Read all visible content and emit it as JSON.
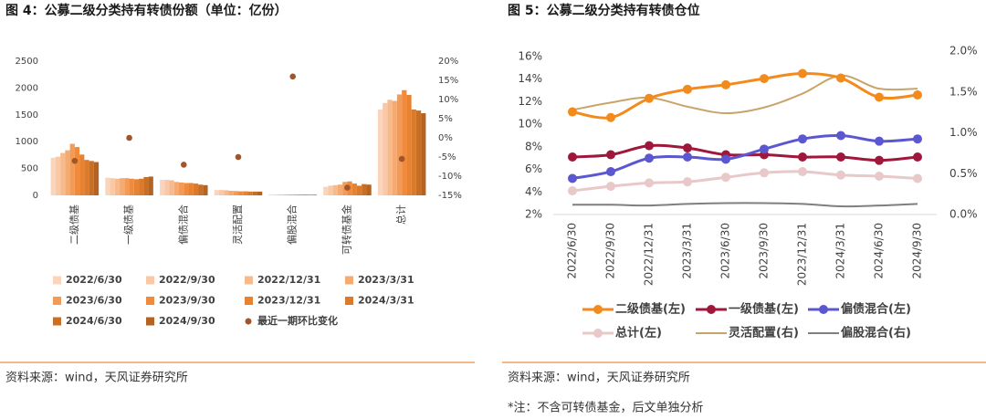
{
  "chart_data": [
    {
      "type": "bar",
      "title": "图 4：公募二级分类持有转债份额（单位：亿份）",
      "source": "资料来源：wind，天风证券研究所",
      "categories": [
        "二级债基",
        "一级债基",
        "偏债混合",
        "灵活配置",
        "偏股混合",
        "可转债基金",
        "总计"
      ],
      "ylim": [
        0,
        2500
      ],
      "yticks": [
        0,
        500,
        1000,
        1500,
        2000,
        2500
      ],
      "y2lim": [
        -15,
        20
      ],
      "y2ticks": [
        {
          "value": -15,
          "label": "-15%"
        },
        {
          "value": -10,
          "label": "-10%"
        },
        {
          "value": -5,
          "label": "-5%"
        },
        {
          "value": 0,
          "label": "0%"
        },
        {
          "value": 5,
          "label": "5%"
        },
        {
          "value": 10,
          "label": "10%"
        },
        {
          "value": 15,
          "label": "15%"
        },
        {
          "value": 20,
          "label": "20%"
        }
      ],
      "grid": false,
      "series": [
        {
          "name": "2022/6/30",
          "color": "#fbd5bb",
          "values": [
            700,
            330,
            290,
            100,
            15,
            160,
            1600
          ]
        },
        {
          "name": "2022/9/30",
          "color": "#f9c8a6",
          "values": [
            720,
            320,
            290,
            100,
            15,
            180,
            1720
          ]
        },
        {
          "name": "2022/12/31",
          "color": "#f7ba8c",
          "values": [
            790,
            310,
            280,
            95,
            15,
            190,
            1780
          ]
        },
        {
          "name": "2023/3/31",
          "color": "#f5aa72",
          "values": [
            840,
            320,
            250,
            85,
            15,
            200,
            1760
          ]
        },
        {
          "name": "2023/6/30",
          "color": "#f39a57",
          "values": [
            960,
            320,
            240,
            80,
            15,
            250,
            1880
          ]
        },
        {
          "name": "2023/9/30",
          "color": "#f08a3c",
          "values": [
            900,
            310,
            230,
            75,
            15,
            260,
            1960
          ]
        },
        {
          "name": "2023/12/31",
          "color": "#e8822e",
          "values": [
            760,
            300,
            230,
            75,
            15,
            220,
            1870
          ]
        },
        {
          "name": "2024/3/31",
          "color": "#db7a2a",
          "values": [
            660,
            310,
            220,
            70,
            15,
            180,
            1600
          ]
        },
        {
          "name": "2024/6/30",
          "color": "#c86f26",
          "values": [
            640,
            340,
            200,
            70,
            12,
            210,
            1580
          ]
        },
        {
          "name": "2024/9/30",
          "color": "#b56322",
          "values": [
            620,
            350,
            190,
            70,
            12,
            200,
            1530
          ]
        },
        {
          "name": "最近一期环比变化",
          "type": "scatter",
          "axis": "y2",
          "color": "#a0562a",
          "values": [
            -6,
            0,
            -7,
            -5,
            16,
            -13,
            -5.5
          ]
        }
      ]
    },
    {
      "type": "line",
      "title": "图 5：公募二级分类持有转债仓位",
      "source": "资料来源：wind，天风证券研究所",
      "note": "*注：不含可转债基金，后文单独分析",
      "categories": [
        "2022/6/30",
        "2022/9/30",
        "2022/12/31",
        "2023/3/31",
        "2023/6/30",
        "2023/9/30",
        "2023/12/31",
        "2024/3/31",
        "2024/6/30",
        "2024/9/30"
      ],
      "ylim": [
        2,
        16
      ],
      "yticks": [
        {
          "value": 2,
          "label": "2%"
        },
        {
          "value": 4,
          "label": "4%"
        },
        {
          "value": 6,
          "label": "6%"
        },
        {
          "value": 8,
          "label": "8%"
        },
        {
          "value": 10,
          "label": "10%"
        },
        {
          "value": 12,
          "label": "12%"
        },
        {
          "value": 14,
          "label": "14%"
        },
        {
          "value": 16,
          "label": "16%"
        }
      ],
      "y2lim": [
        0,
        2
      ],
      "y2ticks": [
        {
          "value": 0,
          "label": "0.0%"
        },
        {
          "value": 0.5,
          "label": "0.5%"
        },
        {
          "value": 1,
          "label": "1.0%"
        },
        {
          "value": 1.5,
          "label": "1.5%"
        },
        {
          "value": 2,
          "label": "2.0%"
        }
      ],
      "grid": false,
      "smooth": true,
      "series": [
        {
          "name": "二级债基(左)",
          "color": "#f28a1c",
          "marker": true,
          "values": [
            11.1,
            10.6,
            12.3,
            13.1,
            13.5,
            14.05,
            14.5,
            14.1,
            12.4,
            12.6
          ]
        },
        {
          "name": "一级债基(左)",
          "color": "#a0173c",
          "marker": true,
          "values": [
            7.1,
            7.3,
            8.1,
            7.9,
            7.3,
            7.3,
            7.1,
            7.1,
            6.8,
            7.1
          ]
        },
        {
          "name": "偏债混合(左)",
          "color": "#5b57d0",
          "marker": true,
          "values": [
            5.2,
            5.8,
            7.0,
            7.1,
            6.9,
            7.8,
            8.7,
            9.0,
            8.5,
            8.7
          ]
        },
        {
          "name": "总计(左)",
          "color": "#e8c8c8",
          "marker": true,
          "values": [
            4.1,
            4.5,
            4.8,
            4.9,
            5.3,
            5.7,
            5.8,
            5.5,
            5.4,
            5.2
          ]
        },
        {
          "name": "灵活配置(右)",
          "color": "#c9a46a",
          "marker": false,
          "axis": "y2",
          "values": [
            1.28,
            1.37,
            1.43,
            1.32,
            1.24,
            1.31,
            1.48,
            1.7,
            1.54,
            1.54
          ]
        },
        {
          "name": "偏股混合(右)",
          "color": "#7f7f7f",
          "marker": false,
          "axis": "y2",
          "values": [
            0.12,
            0.12,
            0.11,
            0.13,
            0.14,
            0.14,
            0.13,
            0.1,
            0.11,
            0.13
          ]
        }
      ]
    }
  ]
}
